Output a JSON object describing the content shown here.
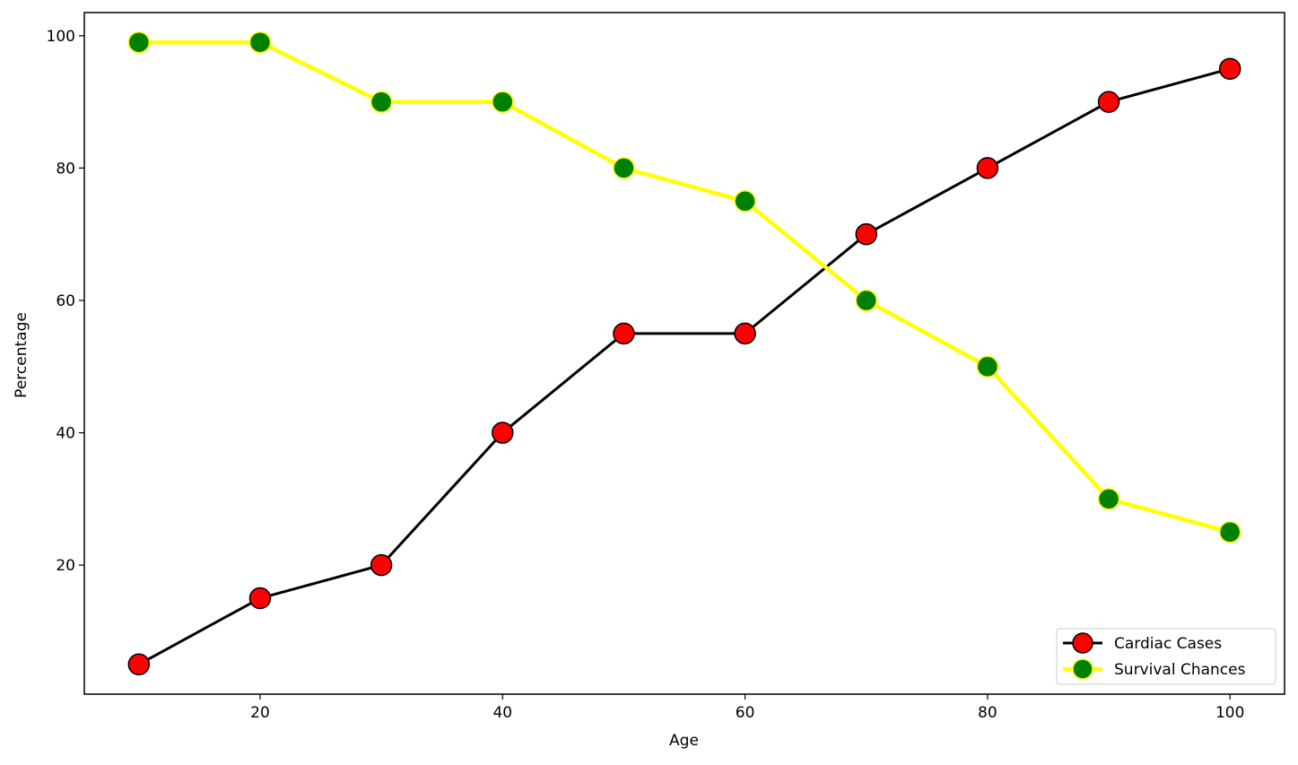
{
  "chart_data": {
    "type": "line",
    "title": "",
    "xlabel": "Age",
    "ylabel": "Percentage",
    "x": [
      10,
      20,
      30,
      40,
      50,
      60,
      70,
      80,
      90,
      100
    ],
    "xlim": [
      5.5,
      104.5
    ],
    "ylim": [
      0.5,
      103.5
    ],
    "xticks": [
      20,
      40,
      60,
      80,
      100
    ],
    "yticks": [
      20,
      40,
      60,
      80,
      100
    ],
    "grid": false,
    "legend_position": "lower-right",
    "series": [
      {
        "name": "Cardiac Cases",
        "values": [
          5,
          15,
          20,
          40,
          55,
          55,
          70,
          80,
          90,
          95
        ],
        "line_color": "#000000",
        "marker_face": "#ff0000",
        "marker_edge": "#000000"
      },
      {
        "name": "Survival Chances",
        "values": [
          99,
          99,
          90,
          90,
          80,
          75,
          60,
          50,
          30,
          25
        ],
        "line_color": "#ffff00",
        "marker_face": "#008000",
        "marker_edge": "#ffff00"
      }
    ]
  }
}
